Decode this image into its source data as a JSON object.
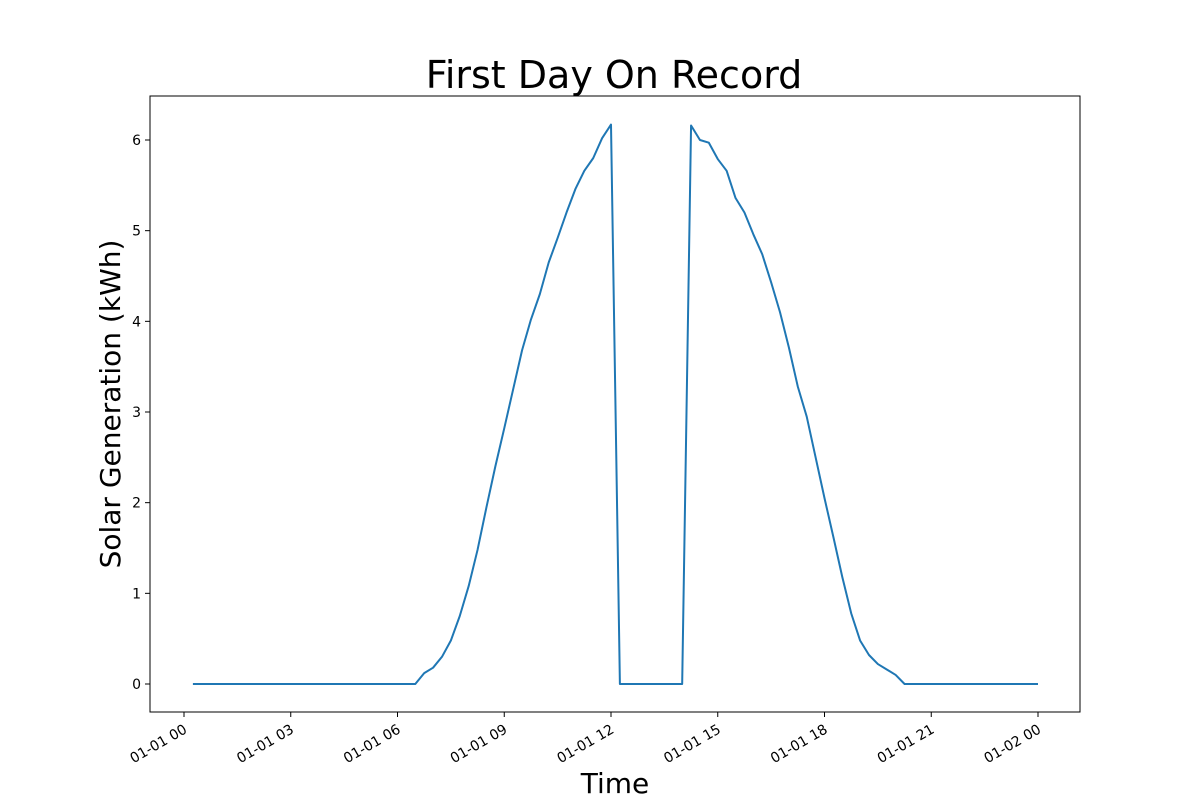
{
  "chart_data": {
    "type": "line",
    "title": "First Day On Record",
    "xlabel": "Time",
    "ylabel": "Solar Generation (kWh)",
    "x_ticks": [
      "01-01 00",
      "01-01 03",
      "01-01 06",
      "01-01 09",
      "01-01 12",
      "01-01 15",
      "01-01 18",
      "01-01 21",
      "01-02 00"
    ],
    "y_ticks": [
      "0",
      "1",
      "2",
      "3",
      "4",
      "5",
      "6"
    ],
    "xlim": [
      "01-01 00",
      "01-02 00"
    ],
    "ylim": [
      0,
      6.2
    ],
    "grid": false,
    "series": [
      {
        "color": "#1f77b4",
        "x": [
          "01-01 00:15",
          "01-01 06:30",
          "01-01 06:45",
          "01-01 07:00",
          "01-01 07:15",
          "01-01 07:30",
          "01-01 07:45",
          "01-01 08:00",
          "01-01 08:15",
          "01-01 08:30",
          "01-01 08:45",
          "01-01 09:00",
          "01-01 09:15",
          "01-01 09:30",
          "01-01 09:45",
          "01-01 10:00",
          "01-01 10:15",
          "01-01 10:30",
          "01-01 10:45",
          "01-01 11:00",
          "01-01 11:15",
          "01-01 11:30",
          "01-01 11:45",
          "01-01 12:00",
          "01-01 12:15",
          "01-01 14:00",
          "01-01 14:15",
          "01-01 14:30",
          "01-01 14:45",
          "01-01 15:00",
          "01-01 15:15",
          "01-01 15:30",
          "01-01 15:45",
          "01-01 16:00",
          "01-01 16:15",
          "01-01 16:30",
          "01-01 16:45",
          "01-01 17:00",
          "01-01 17:15",
          "01-01 17:30",
          "01-01 17:45",
          "01-01 18:00",
          "01-01 18:15",
          "01-01 18:30",
          "01-01 18:45",
          "01-01 19:00",
          "01-01 19:15",
          "01-01 19:30",
          "01-01 19:45",
          "01-01 20:00",
          "01-01 20:15",
          "01-01 20:30",
          "01-01 20:45",
          "01-02 00:00"
        ],
        "y": [
          0,
          0,
          0.12,
          0.18,
          0.3,
          0.48,
          0.75,
          1.08,
          1.48,
          1.95,
          2.4,
          2.82,
          3.25,
          3.68,
          4.02,
          4.3,
          4.65,
          4.92,
          5.2,
          5.46,
          5.66,
          5.8,
          6.02,
          6.17,
          0,
          0,
          6.16,
          6.0,
          5.97,
          5.79,
          5.66,
          5.36,
          5.2,
          4.96,
          4.74,
          4.43,
          4.1,
          3.71,
          3.28,
          2.95,
          2.5,
          2.05,
          1.62,
          1.18,
          0.78,
          0.48,
          0.32,
          0.22,
          0.16,
          0.1,
          0,
          0,
          0,
          0
        ]
      }
    ]
  }
}
